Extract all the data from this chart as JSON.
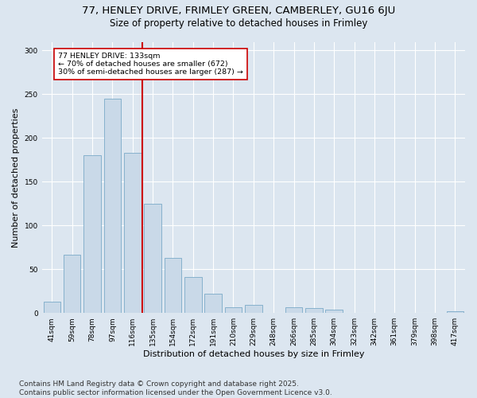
{
  "title_line1": "77, HENLEY DRIVE, FRIMLEY GREEN, CAMBERLEY, GU16 6JU",
  "title_line2": "Size of property relative to detached houses in Frimley",
  "xlabel": "Distribution of detached houses by size in Frimley",
  "ylabel": "Number of detached properties",
  "categories": [
    "41sqm",
    "59sqm",
    "78sqm",
    "97sqm",
    "116sqm",
    "135sqm",
    "154sqm",
    "172sqm",
    "191sqm",
    "210sqm",
    "229sqm",
    "248sqm",
    "266sqm",
    "285sqm",
    "304sqm",
    "323sqm",
    "342sqm",
    "361sqm",
    "379sqm",
    "398sqm",
    "417sqm"
  ],
  "values": [
    13,
    67,
    180,
    245,
    183,
    125,
    63,
    41,
    22,
    7,
    9,
    0,
    7,
    6,
    4,
    0,
    0,
    0,
    0,
    0,
    2
  ],
  "bar_color": "#c9d9e8",
  "bar_edge_color": "#7aaac8",
  "subject_line_color": "#cc0000",
  "annotation_text": "77 HENLEY DRIVE: 133sqm\n← 70% of detached houses are smaller (672)\n30% of semi-detached houses are larger (287) →",
  "annotation_box_color": "#ffffff",
  "annotation_box_edge_color": "#cc0000",
  "ylim": [
    0,
    310
  ],
  "yticks": [
    0,
    50,
    100,
    150,
    200,
    250,
    300
  ],
  "background_color": "#dce6f0",
  "plot_background_color": "#dce6f0",
  "footnote_line1": "Contains HM Land Registry data © Crown copyright and database right 2025.",
  "footnote_line2": "Contains public sector information licensed under the Open Government Licence v3.0.",
  "title_fontsize": 9.5,
  "subtitle_fontsize": 8.5,
  "tick_fontsize": 6.5,
  "xlabel_fontsize": 8,
  "ylabel_fontsize": 8,
  "footnote_fontsize": 6.5
}
